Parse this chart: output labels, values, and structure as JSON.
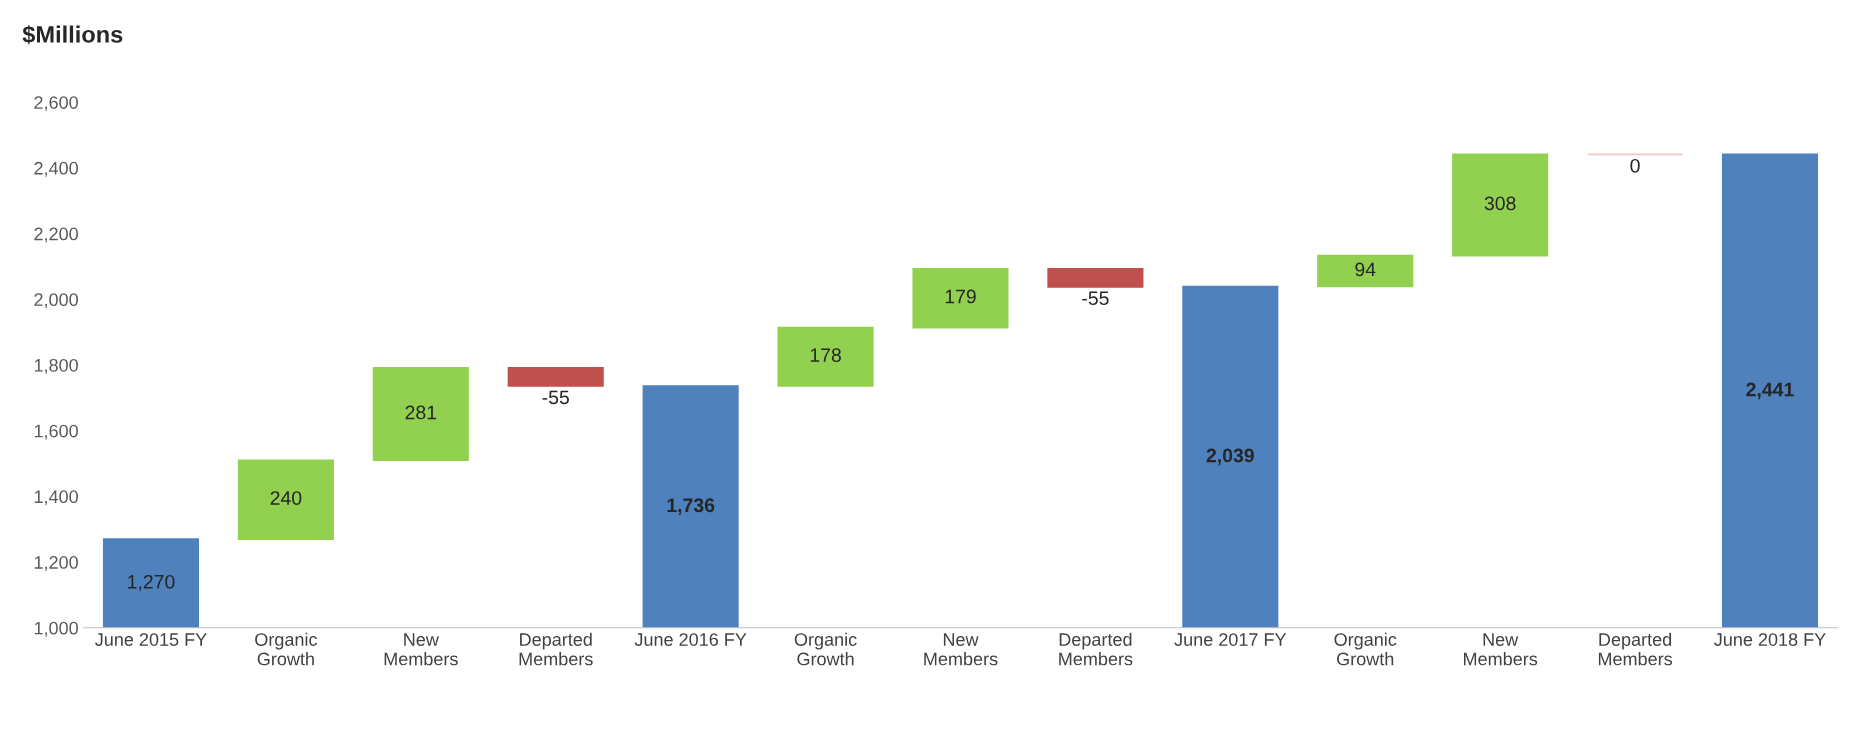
{
  "chart_data": {
    "type": "bar",
    "title": "$Millions",
    "categories": [
      "June 2015 FY",
      "Organic\nGrowth",
      "New\nMembers",
      "Departed\nMembers",
      "June 2016 FY",
      "Organic\nGrowth",
      "New\nMembers",
      "Departed\nMembers",
      "June 2017 FY",
      "Organic\nGrowth",
      "New\nMembers",
      "Departed\nMembers",
      "June 2018 FY"
    ],
    "values": [
      1270,
      240,
      281,
      -55,
      1736,
      178,
      179,
      -55,
      2039,
      94,
      308,
      0,
      2441
    ],
    "base": [
      0,
      1270,
      1510,
      1791,
      0,
      1736,
      1914,
      2093,
      0,
      2039,
      2133,
      2441,
      0
    ],
    "colors": [
      "#4f81bd",
      "#92d050",
      "#92d050",
      "#c0504d",
      "#4f81bd",
      "#92d050",
      "#92d050",
      "#c0504d",
      "#4f81bd",
      "#92d050",
      "#92d050",
      "#f4c7c3",
      "#4f81bd"
    ],
    "value_labels": [
      "1,270",
      "240",
      "281",
      "-55",
      "1,736",
      "178",
      "179",
      "-55",
      "2,039",
      "94",
      "308",
      "0",
      "2,441"
    ],
    "ylim": [
      1000,
      2600
    ],
    "yticks": [
      {
        "value": 1000,
        "label": "1,000"
      },
      {
        "value": 1200,
        "label": "1,200"
      },
      {
        "value": 1400,
        "label": "1,400"
      },
      {
        "value": 1600,
        "label": "1,600"
      },
      {
        "value": 1800,
        "label": "1,800"
      },
      {
        "value": 2000,
        "label": "2,000"
      },
      {
        "value": 2200,
        "label": "2,200"
      },
      {
        "value": 2400,
        "label": "2,400"
      },
      {
        "value": 2600,
        "label": "2,600"
      }
    ],
    "grid": false,
    "legend": false
  }
}
